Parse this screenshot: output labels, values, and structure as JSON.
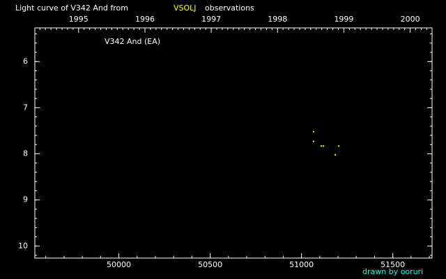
{
  "chart_data": {
    "type": "scatter",
    "title": "Light curve of V342 And from",
    "title_source": "VSOLJ",
    "title_tail": "observations",
    "annotation": "V342 And (EA)",
    "credit": "drawn by ooruri",
    "series": [
      {
        "name": "VSOLJ",
        "color": "#ffff00",
        "x": [
          51066,
          51066,
          51108,
          51120,
          51185,
          51204
        ],
        "values": [
          7.52,
          7.73,
          7.83,
          7.83,
          8.02,
          7.83
        ]
      }
    ],
    "xlim": [
      49540,
      51715
    ],
    "xticks": [
      50000,
      50500,
      51000,
      51500
    ],
    "x2lim": [
      1994.34,
      2000.33
    ],
    "x2ticks": [
      1995,
      1996,
      1997,
      1998,
      1999,
      2000
    ],
    "ylim": [
      10.26,
      5.27
    ],
    "yticks": [
      6,
      7,
      8,
      9,
      10
    ],
    "background": "#000000",
    "axis_color": "#ffffff",
    "title_source_color": "#ffff00",
    "credit_color": "#00ffff"
  }
}
